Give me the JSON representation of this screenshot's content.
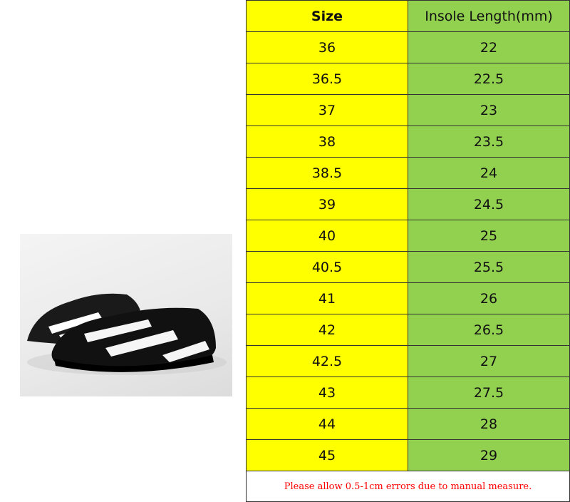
{
  "table": {
    "headers": [
      "Size",
      "Insole Length(mm)"
    ],
    "rows": [
      [
        "36",
        "22"
      ],
      [
        "36.5",
        "22.5"
      ],
      [
        "37",
        "23"
      ],
      [
        "38",
        "23.5"
      ],
      [
        "38.5",
        "24"
      ],
      [
        "39",
        "24.5"
      ],
      [
        "40",
        "25"
      ],
      [
        "40.5",
        "25.5"
      ],
      [
        "41",
        "26"
      ],
      [
        "42",
        "26.5"
      ],
      [
        "42.5",
        "27"
      ],
      [
        "43",
        "27.5"
      ],
      [
        "44",
        "28"
      ],
      [
        "45",
        "29"
      ]
    ],
    "note": "Please allow 0.5-1cm errors due to manual measure."
  },
  "colors": {
    "size_column": "#ffff00",
    "length_column": "#92d050",
    "note": "#ff0000"
  }
}
